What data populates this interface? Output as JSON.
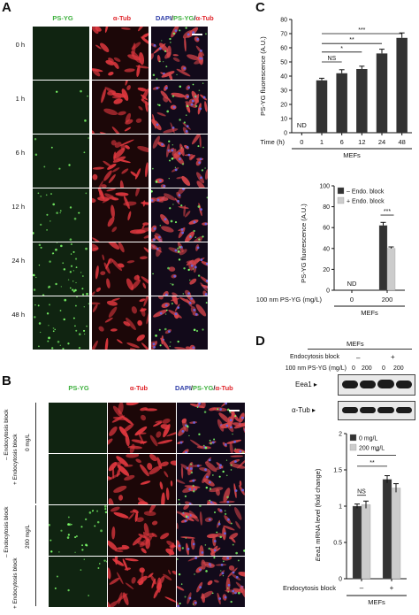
{
  "panels": {
    "A": {
      "label": "A",
      "columns": [
        {
          "text": "PS-YG",
          "color": "#3fb13f"
        },
        {
          "text": "α-Tub",
          "color": "#e0262c"
        }
      ],
      "merge": {
        "dapi": "DAPI",
        "sep1": "/",
        "ps": "PS-YG",
        "sep2": "/",
        "tub": "α-Tub"
      },
      "rows": [
        "0 h",
        "1 h",
        "6 h",
        "12 h",
        "24 h",
        "48 h"
      ]
    },
    "B": {
      "label": "B",
      "columns": [
        {
          "text": "PS-YG",
          "color": "#3fb13f"
        },
        {
          "text": "α-Tub",
          "color": "#e0262c"
        }
      ],
      "merge": {
        "dapi": "DAPI",
        "sep1": "/",
        "ps": "PS-YG",
        "sep2": "/",
        "tub": "α-Tub"
      },
      "conc": [
        "0 mg/L",
        "200 mg/L"
      ],
      "rows": [
        "– Endocytosis block",
        "+ Endocytosis block",
        "– Endocytosis block",
        "+ Endocytosis block"
      ]
    },
    "C": {
      "label": "C"
    },
    "D": {
      "label": "D",
      "blot": {
        "title": "MEFs",
        "row1_label": "Endocytosis block",
        "row1_vals": [
          "–",
          "+"
        ],
        "row2_label": "100 nm PS-YG (mg/L)",
        "row2_vals": [
          "0",
          "200",
          "0",
          "200"
        ],
        "band1": "Eea1 ▸",
        "band2": "α-Tub ▸"
      }
    }
  },
  "chart_data": [
    {
      "type": "bar",
      "panel": "C-top",
      "ylabel": "PS-YG fluorescence (A.U.)",
      "xlabel_prefix": "Time (h)",
      "categories": [
        "0",
        "1",
        "6",
        "12",
        "24",
        "48"
      ],
      "values": [
        null,
        37,
        42,
        45,
        56,
        67
      ],
      "errors": [
        0,
        1.5,
        2.5,
        2,
        3,
        3.5
      ],
      "nd_label": "ND",
      "ylim": [
        0,
        80
      ],
      "yticks": [
        0,
        10,
        20,
        30,
        40,
        50,
        60,
        70,
        80
      ],
      "group_label": "MEFs",
      "bar_color": "#333333",
      "significance": [
        {
          "label": "NS",
          "from": "1",
          "to": "6"
        },
        {
          "label": "*",
          "from": "1",
          "to": "12"
        },
        {
          "label": "**",
          "from": "1",
          "to": "24"
        },
        {
          "label": "***",
          "from": "1",
          "to": "48"
        }
      ]
    },
    {
      "type": "bar",
      "panel": "C-bottom",
      "ylabel": "PS-YG fluorescence (A.U.)",
      "xlabel_prefix": "100 nm PS-YG (mg/L)",
      "categories": [
        "0",
        "200"
      ],
      "series": [
        {
          "name": "– Endo. block",
          "values": [
            null,
            62
          ],
          "errors": [
            0,
            3
          ],
          "color": "#333333"
        },
        {
          "name": "+ Endo. block",
          "values": [
            null,
            40
          ],
          "errors": [
            0,
            1.5
          ],
          "color": "#cccccc"
        }
      ],
      "nd_label": "ND",
      "ylim": [
        0,
        100
      ],
      "yticks": [
        0,
        20,
        40,
        60,
        80,
        100
      ],
      "group_label": "MEFs",
      "significance": [
        {
          "label": "***",
          "between": "series",
          "category": "200"
        }
      ],
      "legend": "top-left"
    },
    {
      "type": "bar",
      "panel": "D-bottom",
      "ylabel_italic": "Eea1",
      "ylabel_rest": " mRNA level (fold change)",
      "xlabel_prefix": "Endocytosis block",
      "categories": [
        "–",
        "+"
      ],
      "series": [
        {
          "name": "0 mg/L",
          "values": [
            1.0,
            1.37
          ],
          "errors": [
            0.03,
            0.05
          ],
          "color": "#333333"
        },
        {
          "name": "200 mg/L",
          "values": [
            1.02,
            1.25
          ],
          "errors": [
            0.05,
            0.06
          ],
          "color": "#cccccc"
        }
      ],
      "ylim": [
        0,
        2
      ],
      "yticks": [
        0,
        0.5,
        1,
        1.5,
        2
      ],
      "ytick_labels": [
        "0",
        "0.5",
        "1",
        "1.5",
        "2"
      ],
      "group_label": "MEFs",
      "significance": [
        {
          "label": "NS",
          "pair": [
            "–/0 mg/L",
            "–/200 mg/L"
          ]
        },
        {
          "label": "**",
          "pair": [
            "–/0 mg/L",
            "+/0 mg/L"
          ]
        },
        {
          "label": "*",
          "pair": [
            "–/0 mg/L",
            "+/200 mg/L"
          ]
        }
      ],
      "legend": "top-left"
    }
  ]
}
